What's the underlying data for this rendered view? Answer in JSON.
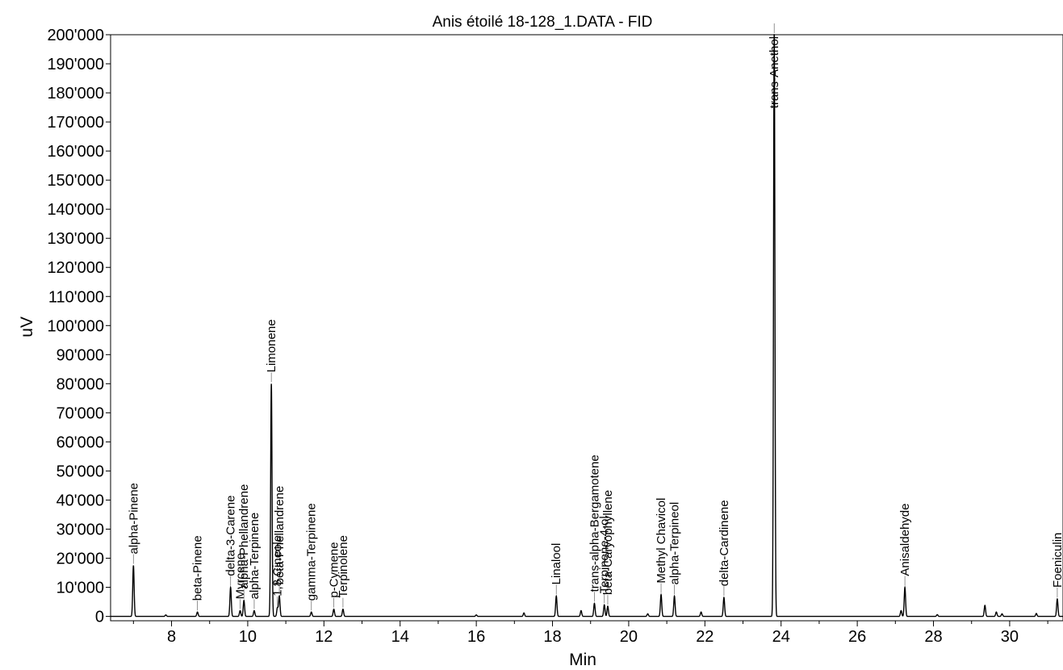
{
  "chart_data": {
    "type": "line",
    "title": "Anis étoilé 18-128_1.DATA - FID",
    "xlabel": "Min",
    "ylabel": "uV",
    "xlim": [
      6.4,
      31.4
    ],
    "ylim": [
      -1500,
      200000
    ],
    "x_ticks": [
      8,
      10,
      12,
      14,
      16,
      18,
      20,
      22,
      24,
      26,
      28,
      30
    ],
    "x_tick_labels": [
      "8",
      "10",
      "12",
      "14",
      "16",
      "18",
      "20",
      "22",
      "24",
      "26",
      "28",
      "30"
    ],
    "y_ticks": [
      0,
      10000,
      20000,
      30000,
      40000,
      50000,
      60000,
      70000,
      80000,
      90000,
      100000,
      110000,
      120000,
      130000,
      140000,
      150000,
      160000,
      170000,
      180000,
      190000,
      200000
    ],
    "y_tick_labels": [
      "0",
      "10'000",
      "20'000",
      "30'000",
      "40'000",
      "50'000",
      "60'000",
      "70'000",
      "80'000",
      "90'000",
      "100'000",
      "110'000",
      "120'000",
      "130'000",
      "140'000",
      "150'000",
      "160'000",
      "170'000",
      "180'000",
      "190'000",
      "200'000"
    ],
    "grid": false,
    "line_color": "#000000",
    "peaks": [
      {
        "name": "alpha-Pinene",
        "x": 7.0,
        "y": 17500
      },
      {
        "name": "beta-Pinene",
        "x": 8.68,
        "y": 1500
      },
      {
        "name": "delta-3-Carene",
        "x": 9.55,
        "y": 10000
      },
      {
        "name": "Myrcene",
        "x": 9.8,
        "y": 2000
      },
      {
        "name": "alpha-Phellandrene",
        "x": 9.9,
        "y": 5500
      },
      {
        "name": "alpha-Terpinene",
        "x": 10.17,
        "y": 2000
      },
      {
        "name": "Limonene",
        "x": 10.62,
        "y": 80000
      },
      {
        "name": "1,8 Cineole",
        "x": 10.78,
        "y": 3000
      },
      {
        "name": "beta-Phellandrene",
        "x": 10.83,
        "y": 7000
      },
      {
        "name": "gamma-Terpinene",
        "x": 11.67,
        "y": 1500
      },
      {
        "name": "p-Cymene",
        "x": 12.26,
        "y": 2500
      },
      {
        "name": "Terpinolene",
        "x": 12.5,
        "y": 2500
      },
      {
        "name": "Linalool",
        "x": 18.1,
        "y": 7000
      },
      {
        "name": "trans-alpha-Bergamotene",
        "x": 19.1,
        "y": 4500
      },
      {
        "name": "Terpinene-4-ol",
        "x": 19.36,
        "y": 4000
      },
      {
        "name": "beta-Caryophyllene",
        "x": 19.45,
        "y": 3500
      },
      {
        "name": "Methyl Chavicol",
        "x": 20.85,
        "y": 7500
      },
      {
        "name": "alpha-Terpineol",
        "x": 21.2,
        "y": 7000
      },
      {
        "name": "delta-Cardinene",
        "x": 22.5,
        "y": 6500
      },
      {
        "name": "trans-Anethol",
        "x": 23.82,
        "y": 202000
      },
      {
        "name": "Anisaldehyde",
        "x": 27.25,
        "y": 10000
      },
      {
        "name": "Foeniculin",
        "x": 31.25,
        "y": 6000
      }
    ],
    "minor_peaks": [
      {
        "x": 7.85,
        "y": 500
      },
      {
        "x": 16.0,
        "y": 500
      },
      {
        "x": 17.25,
        "y": 1200
      },
      {
        "x": 18.75,
        "y": 2000
      },
      {
        "x": 20.5,
        "y": 900
      },
      {
        "x": 21.9,
        "y": 1500
      },
      {
        "x": 27.15,
        "y": 2000
      },
      {
        "x": 28.1,
        "y": 600
      },
      {
        "x": 29.35,
        "y": 3800
      },
      {
        "x": 29.65,
        "y": 1500
      },
      {
        "x": 29.8,
        "y": 900
      },
      {
        "x": 30.7,
        "y": 1000
      }
    ]
  }
}
